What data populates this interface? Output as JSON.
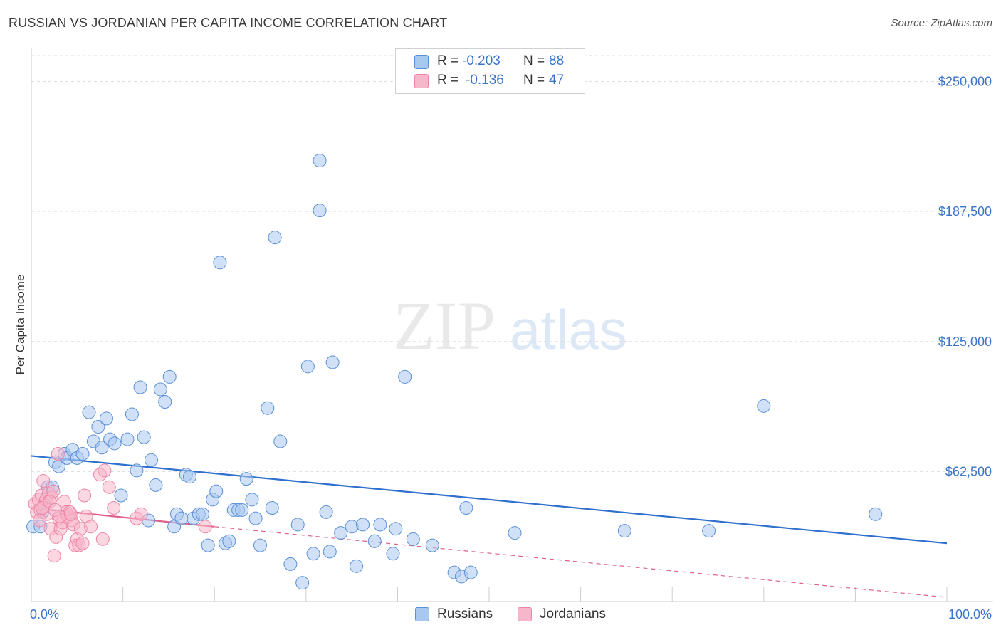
{
  "title": "RUSSIAN VS JORDANIAN PER CAPITA INCOME CORRELATION CHART",
  "source": "Source: ZipAtlas.com",
  "watermark": {
    "zip": "ZIP",
    "atlas": "atlas"
  },
  "legend": {
    "series1": {
      "r_label": "R =",
      "r_value": "-0.203",
      "n_label": "N =",
      "n_value": "88"
    },
    "series2": {
      "r_label": "R =",
      "r_value": "-0.136",
      "n_label": "N =",
      "n_value": "47"
    }
  },
  "colors": {
    "russians_fill": "#a9c8f0",
    "russians_stroke": "#5b8fd8",
    "russians_line": "#2f6fce",
    "jordanians_fill": "#f7b7cb",
    "jordanians_stroke": "#ec85a6",
    "jordanians_line": "#e0608a",
    "grid": "#dddddd",
    "axis_label": "#3a74c8"
  },
  "chart_data": {
    "type": "scatter",
    "title": "RUSSIAN VS JORDANIAN PER CAPITA INCOME CORRELATION CHART",
    "xlabel": "",
    "ylabel": "Per Capita Income",
    "xlim": [
      0,
      100
    ],
    "ylim": [
      0,
      262500
    ],
    "x_tick_labels": [
      "0.0%",
      "100.0%"
    ],
    "y_ticks": [
      62500,
      125000,
      187500,
      250000
    ],
    "y_tick_labels": [
      "$62,500",
      "$125,000",
      "$187,500",
      "$250,000"
    ],
    "grid": true,
    "legend_position": "bottom-center",
    "series": [
      {
        "name": "Russians",
        "r": -0.203,
        "n": 88,
        "trend": {
          "x": [
            0,
            100
          ],
          "y": [
            70000,
            28000
          ]
        },
        "points": [
          [
            0.2,
            36000
          ],
          [
            1.2,
            43000
          ],
          [
            1.5,
            46000
          ],
          [
            1.8,
            55000
          ],
          [
            2.3,
            55000
          ],
          [
            2.6,
            67000
          ],
          [
            3.0,
            65000
          ],
          [
            3.6,
            71000
          ],
          [
            3.9,
            69000
          ],
          [
            4.5,
            73000
          ],
          [
            5.0,
            69000
          ],
          [
            5.6,
            71000
          ],
          [
            6.3,
            91000
          ],
          [
            6.8,
            77000
          ],
          [
            7.3,
            84000
          ],
          [
            7.7,
            74000
          ],
          [
            8.2,
            88000
          ],
          [
            8.6,
            78000
          ],
          [
            9.1,
            76000
          ],
          [
            9.8,
            51000
          ],
          [
            10.5,
            78000
          ],
          [
            11.0,
            90000
          ],
          [
            11.5,
            63000
          ],
          [
            11.9,
            103000
          ],
          [
            12.3,
            79000
          ],
          [
            12.8,
            39000
          ],
          [
            13.1,
            68000
          ],
          [
            13.6,
            56000
          ],
          [
            14.1,
            102000
          ],
          [
            14.6,
            96000
          ],
          [
            15.1,
            108000
          ],
          [
            15.6,
            36000
          ],
          [
            15.9,
            42000
          ],
          [
            16.4,
            40000
          ],
          [
            16.9,
            61000
          ],
          [
            17.3,
            60000
          ],
          [
            17.7,
            40000
          ],
          [
            18.3,
            42000
          ],
          [
            18.7,
            42000
          ],
          [
            19.3,
            27000
          ],
          [
            19.8,
            49000
          ],
          [
            20.2,
            53000
          ],
          [
            20.6,
            163000
          ],
          [
            21.2,
            28000
          ],
          [
            21.6,
            29000
          ],
          [
            22.1,
            44000
          ],
          [
            22.6,
            44000
          ],
          [
            23.0,
            44000
          ],
          [
            23.5,
            59000
          ],
          [
            24.1,
            49000
          ],
          [
            24.5,
            40000
          ],
          [
            25.0,
            27000
          ],
          [
            25.8,
            93000
          ],
          [
            26.3,
            45000
          ],
          [
            26.6,
            175000
          ],
          [
            27.2,
            77000
          ],
          [
            28.3,
            18000
          ],
          [
            29.1,
            37000
          ],
          [
            29.6,
            9000
          ],
          [
            30.2,
            113000
          ],
          [
            30.8,
            23000
          ],
          [
            31.5,
            188000
          ],
          [
            32.2,
            43000
          ],
          [
            32.6,
            24000
          ],
          [
            32.9,
            115000
          ],
          [
            33.8,
            33000
          ],
          [
            35.0,
            36000
          ],
          [
            35.5,
            17000
          ],
          [
            36.2,
            37000
          ],
          [
            37.5,
            29000
          ],
          [
            38.1,
            37000
          ],
          [
            39.5,
            23000
          ],
          [
            39.8,
            35000
          ],
          [
            40.8,
            108000
          ],
          [
            41.7,
            30000
          ],
          [
            43.8,
            27000
          ],
          [
            46.2,
            14000
          ],
          [
            47.0,
            12000
          ],
          [
            47.5,
            45000
          ],
          [
            48.0,
            14000
          ],
          [
            52.8,
            33000
          ],
          [
            64.8,
            34000
          ],
          [
            74.0,
            34000
          ],
          [
            80.0,
            94000
          ],
          [
            92.2,
            42000
          ],
          [
            31.5,
            212000
          ],
          [
            1.0,
            36000
          ]
        ]
      },
      {
        "name": "Jordanians",
        "r": -0.136,
        "n": 47,
        "trend": {
          "x": [
            0,
            20
          ],
          "y": [
            45000,
            36000
          ]
        },
        "trend_extension": {
          "x": [
            20,
            100
          ],
          "y": [
            36000,
            2000
          ]
        },
        "points": [
          [
            0.4,
            47000
          ],
          [
            0.6,
            43000
          ],
          [
            0.8,
            49000
          ],
          [
            1.0,
            44000
          ],
          [
            1.1,
            51000
          ],
          [
            1.3,
            58000
          ],
          [
            1.4,
            46000
          ],
          [
            1.6,
            49000
          ],
          [
            1.7,
            42000
          ],
          [
            1.9,
            52000
          ],
          [
            2.1,
            35000
          ],
          [
            2.2,
            50000
          ],
          [
            2.4,
            53000
          ],
          [
            2.5,
            22000
          ],
          [
            2.7,
            31000
          ],
          [
            2.9,
            71000
          ],
          [
            3.0,
            40000
          ],
          [
            3.2,
            35000
          ],
          [
            3.4,
            38000
          ],
          [
            3.6,
            48000
          ],
          [
            3.8,
            43000
          ],
          [
            4.0,
            41000
          ],
          [
            4.2,
            43000
          ],
          [
            4.4,
            39000
          ],
          [
            4.6,
            37000
          ],
          [
            4.8,
            27000
          ],
          [
            5.0,
            30000
          ],
          [
            5.2,
            27000
          ],
          [
            5.4,
            35000
          ],
          [
            5.6,
            28000
          ],
          [
            5.8,
            51000
          ],
          [
            6.0,
            41000
          ],
          [
            7.5,
            61000
          ],
          [
            7.8,
            30000
          ],
          [
            8.0,
            63000
          ],
          [
            8.5,
            55000
          ],
          [
            9.0,
            45000
          ],
          [
            11.5,
            40000
          ],
          [
            12.0,
            42000
          ],
          [
            19.0,
            36000
          ],
          [
            1.2,
            45000
          ],
          [
            2.0,
            48000
          ],
          [
            3.1,
            41000
          ],
          [
            4.3,
            42000
          ],
          [
            0.9,
            39000
          ],
          [
            2.6,
            44000
          ],
          [
            6.5,
            36000
          ]
        ]
      }
    ]
  },
  "bottom_legend": {
    "series1_label": "Russians",
    "series2_label": "Jordanians"
  }
}
